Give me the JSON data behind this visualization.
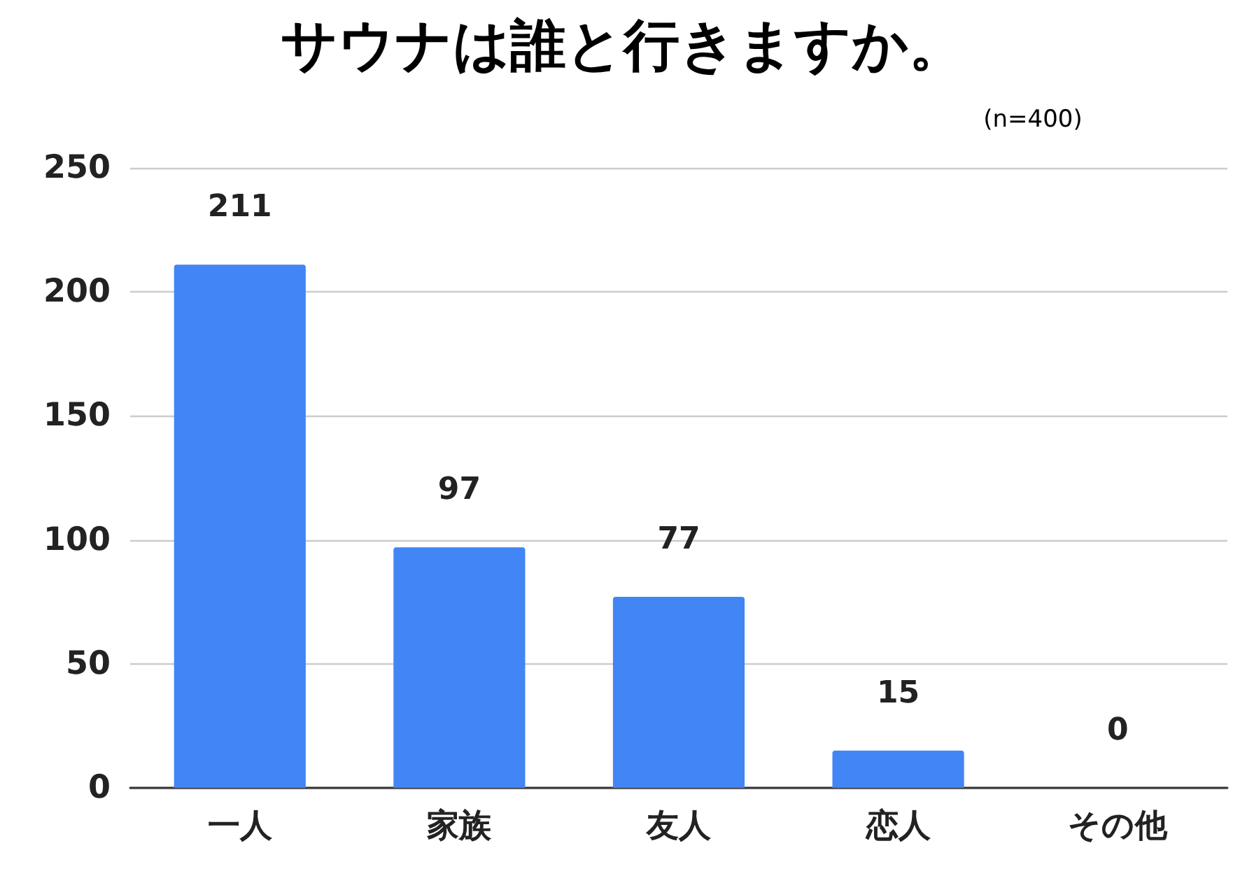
{
  "chart_data": {
    "type": "bar",
    "title": "サウナは誰と行きますか。",
    "subtitle": "(n=400)",
    "categories": [
      "一人",
      "家族",
      "友人",
      "恋人",
      "その他"
    ],
    "values": [
      211,
      97,
      77,
      15,
      0
    ],
    "color": "#4285f4",
    "ylim": [
      0,
      250
    ],
    "yticks": [
      0,
      50,
      100,
      150,
      200,
      250
    ],
    "grid": "y",
    "data_labels": true
  }
}
